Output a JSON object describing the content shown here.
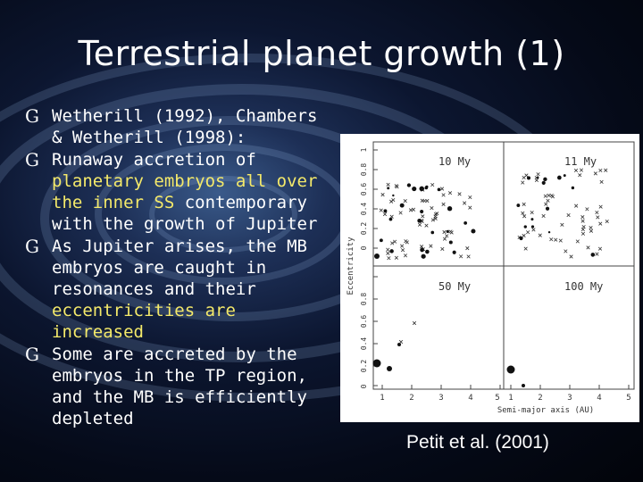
{
  "slide": {
    "title": "Terrestrial planet growth (1)",
    "bullet_icon": "G",
    "bullets": [
      {
        "pre": "Wetherill (1992), Chambers & Wetherill (1998):"
      },
      {
        "pre": "Runaway accretion of ",
        "hl": "planetary embryos all over the inner SS",
        "post": " contemporary with the growth of Jupiter"
      },
      {
        "pre": "As Jupiter arises, the MB embryos are caught in resonances and their ",
        "hl": "eccentricities are increased"
      },
      {
        "pre": "Some are accreted by the embryos in the TP region, and the MB is efficiently depleted"
      }
    ],
    "caption": "Petit et al. (2001)",
    "highlight_color": "#f4e96a"
  },
  "figure": {
    "panels": [
      {
        "label": "10 My"
      },
      {
        "label": "11 My"
      },
      {
        "label": "50 My"
      },
      {
        "label": "100 My"
      }
    ],
    "ylabel": "Eccentricity",
    "xlabel": "Semi-major axis (AU)",
    "x_ticks": [
      "1",
      "2",
      "3",
      "4",
      "5"
    ],
    "y_ticks_top": [
      "0",
      "0.2",
      "0.4",
      "0.6",
      "0.8",
      "1"
    ],
    "y_ticks_bottom": [
      "0",
      "0.2",
      "0.4",
      "0.6",
      "0.8"
    ]
  }
}
